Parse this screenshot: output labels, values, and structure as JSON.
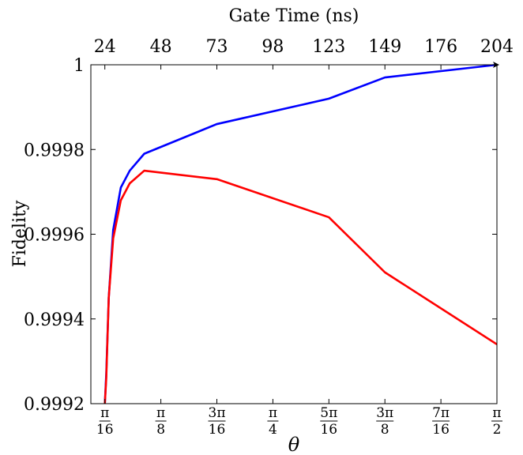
{
  "chart_data": {
    "type": "line",
    "title": "",
    "xlabel": "θ",
    "ylabel": "Fidelity",
    "x2label": "Gate Time (ns)",
    "xlim": [
      0.1473,
      1.5708
    ],
    "ylim": [
      0.9992,
      1.0
    ],
    "grid": false,
    "legend": "none",
    "x_ticks": [
      {
        "value": 0.19635,
        "num": "π",
        "den": "16"
      },
      {
        "value": 0.3927,
        "num": "π",
        "den": "8"
      },
      {
        "value": 0.58905,
        "num": "3π",
        "den": "16"
      },
      {
        "value": 0.7854,
        "num": "π",
        "den": "4"
      },
      {
        "value": 0.98175,
        "num": "5π",
        "den": "16"
      },
      {
        "value": 1.1781,
        "num": "3π",
        "den": "8"
      },
      {
        "value": 1.37445,
        "num": "7π",
        "den": "16"
      },
      {
        "value": 1.5708,
        "num": "π",
        "den": "2"
      }
    ],
    "x2_ticks": [
      {
        "value": 0.19635,
        "label": "24"
      },
      {
        "value": 0.3927,
        "label": "48"
      },
      {
        "value": 0.58905,
        "label": "73"
      },
      {
        "value": 0.7854,
        "label": "98"
      },
      {
        "value": 0.98175,
        "label": "123"
      },
      {
        "value": 1.1781,
        "label": "149"
      },
      {
        "value": 1.37445,
        "label": "176"
      },
      {
        "value": 1.5708,
        "label": "204"
      }
    ],
    "y_ticks": [
      {
        "value": 0.9992,
        "label": "0.9992"
      },
      {
        "value": 0.9994,
        "label": "0.9994"
      },
      {
        "value": 0.9996,
        "label": "0.9996"
      },
      {
        "value": 0.9998,
        "label": "0.9998"
      },
      {
        "value": 1.0,
        "label": "1"
      }
    ],
    "series": [
      {
        "color": "#0000ff",
        "x": [
          0.19635,
          0.2013,
          0.21,
          0.2256,
          0.2523,
          0.2836,
          0.3345,
          0.589,
          0.9817,
          1.1781,
          1.5708
        ],
        "y": [
          0.9992,
          0.99927,
          0.99945,
          0.99961,
          0.99971,
          0.99975,
          0.99979,
          0.99986,
          0.99992,
          0.99997,
          1.0
        ]
      },
      {
        "color": "#ff0000",
        "x": [
          0.19635,
          0.2013,
          0.21,
          0.2256,
          0.2523,
          0.2836,
          0.3345,
          0.589,
          0.9817,
          1.1781,
          1.5708
        ],
        "y": [
          0.9992,
          0.99926,
          0.99945,
          0.99959,
          0.99968,
          0.99972,
          0.99975,
          0.99973,
          0.99964,
          0.99951,
          0.99934
        ]
      }
    ]
  }
}
